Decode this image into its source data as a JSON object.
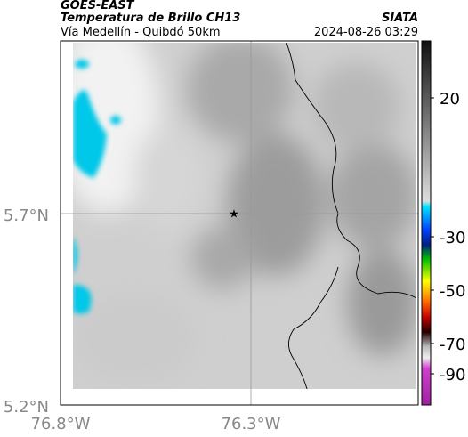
{
  "header": {
    "title": "GOES-EAST",
    "subtitle": "Temperatura de Brillo CH13",
    "source": "SIATA",
    "caption": "Vía Medellín - Quibdó 50km",
    "datetime": "2024-08-26 03:29"
  },
  "axes": {
    "y_ticks": [
      "5.7°N",
      "5.2°N"
    ],
    "x_ticks": [
      "76.8°W",
      "76.3°W"
    ]
  },
  "colorbar": {
    "ticks": [
      "20",
      "-30",
      "-50",
      "-70",
      "-90"
    ]
  }
}
